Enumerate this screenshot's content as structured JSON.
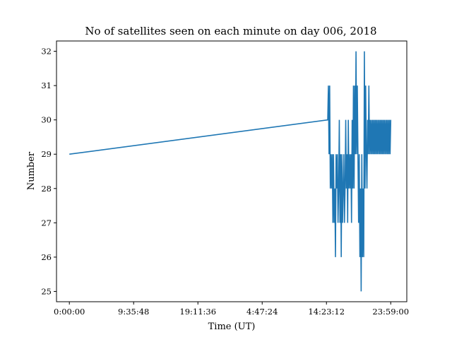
{
  "chart_data": {
    "type": "line",
    "title": "No of satellites seen on each minute on day 006, 2018",
    "xlabel": "Time (UT)",
    "ylabel": "Number",
    "x_tick_labels": [
      "0:00:00",
      "9:35:48",
      "19:11:36",
      "4:47:24",
      "14:23:12",
      "23:59:00"
    ],
    "x_unit": "tick-index",
    "xlim": [
      -0.2,
      5.25
    ],
    "ylim": [
      24.7,
      32.3
    ],
    "y_ticks": [
      25,
      26,
      27,
      28,
      29,
      30,
      31,
      32
    ],
    "grid": false,
    "line_color": "#1f77b4",
    "series": [
      {
        "x": [
          0.0,
          4.02,
          4.03,
          4.04,
          4.05,
          4.06,
          4.07,
          4.08,
          4.09,
          4.1,
          4.11,
          4.12,
          4.13,
          4.14,
          4.15,
          4.16,
          4.17,
          4.18,
          4.19,
          4.2,
          4.21,
          4.22,
          4.23,
          4.24,
          4.25,
          4.26,
          4.27,
          4.28,
          4.29,
          4.3,
          4.31,
          4.32,
          4.33,
          4.34,
          4.35,
          4.36,
          4.37,
          4.38,
          4.39,
          4.4,
          4.41,
          4.42,
          4.43,
          4.44,
          4.45,
          4.46,
          4.47,
          4.48,
          4.49,
          4.5,
          4.51,
          4.52,
          4.53,
          4.54,
          4.55,
          4.56,
          4.57,
          4.58,
          4.59,
          4.6,
          4.61,
          4.62,
          4.63,
          4.64,
          4.65,
          4.66,
          4.67,
          4.68,
          4.69,
          4.7,
          4.71,
          4.72,
          4.73,
          4.74,
          4.75,
          4.76,
          4.77,
          4.78,
          4.79,
          4.8,
          4.81,
          4.82,
          4.83,
          4.84,
          4.85,
          4.86,
          4.87,
          4.88,
          4.89,
          4.9,
          4.91,
          4.92,
          4.93,
          4.94,
          4.95,
          4.96,
          4.97,
          4.98,
          4.99,
          5.0
        ],
        "y": [
          29,
          30,
          31,
          29,
          31,
          28,
          29,
          28,
          29,
          27,
          29,
          27,
          28,
          26,
          29,
          28,
          29,
          27,
          28,
          30,
          27,
          29,
          26,
          29,
          27,
          28,
          29,
          27,
          28,
          30,
          28,
          29,
          27,
          30,
          28,
          29,
          28,
          29,
          27,
          30,
          28,
          31,
          28,
          31,
          29,
          32,
          29,
          31,
          29,
          27,
          29,
          26,
          28,
          25,
          29,
          26,
          28,
          26,
          32,
          28,
          31,
          29,
          28,
          30,
          29,
          31,
          29,
          30,
          29,
          30,
          29,
          30,
          29,
          30,
          29,
          30,
          29,
          30,
          29,
          30,
          29,
          30,
          29,
          30,
          29,
          30,
          29,
          30,
          29,
          30,
          29,
          30,
          29,
          30,
          29,
          30,
          29,
          30,
          29,
          30
        ]
      }
    ]
  }
}
